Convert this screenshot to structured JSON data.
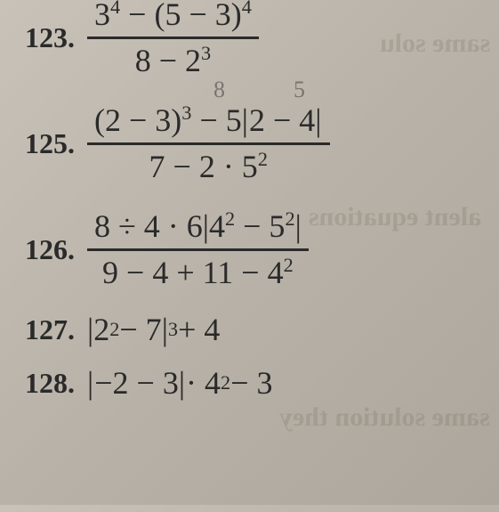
{
  "problems": {
    "p123": {
      "number": "123.",
      "numerator_a": "3",
      "numerator_a_sup": "4",
      "numerator_mid": " − (5 − 3)",
      "numerator_b_sup": "4",
      "denominator_a": "8 − 2",
      "denominator_sup": "3"
    },
    "p125": {
      "number": "125.",
      "numerator_a": "(2 − 3)",
      "numerator_a_sup": "3",
      "numerator_mid": " − 5",
      "numerator_abs": "2 − 4",
      "denominator_a": "7 − 2 · 5",
      "denominator_sup": "2"
    },
    "p126": {
      "number": "126.",
      "numerator_a": "8 ÷ 4 · 6",
      "numerator_abs_a": "4",
      "numerator_abs_a_sup": "2",
      "numerator_abs_mid": " − 5",
      "numerator_abs_b_sup": "2",
      "denominator_a": "9 − 4 + 11 − 4",
      "denominator_sup": "2"
    },
    "p127": {
      "number": "127.",
      "abs_a": "2",
      "abs_a_sup": "2",
      "abs_mid": " − 7",
      "outer_sup": "3",
      "tail": " + 4"
    },
    "p128": {
      "number": "128.",
      "abs": "−2 − 3",
      "mid": " · 4",
      "sup": "2",
      "tail": " − 3"
    }
  },
  "pencil": {
    "mark1": "8",
    "mark2": "5"
  },
  "bleed": {
    "b1": "same solu",
    "b2": "alent equations",
    "b3": "same solution they"
  }
}
